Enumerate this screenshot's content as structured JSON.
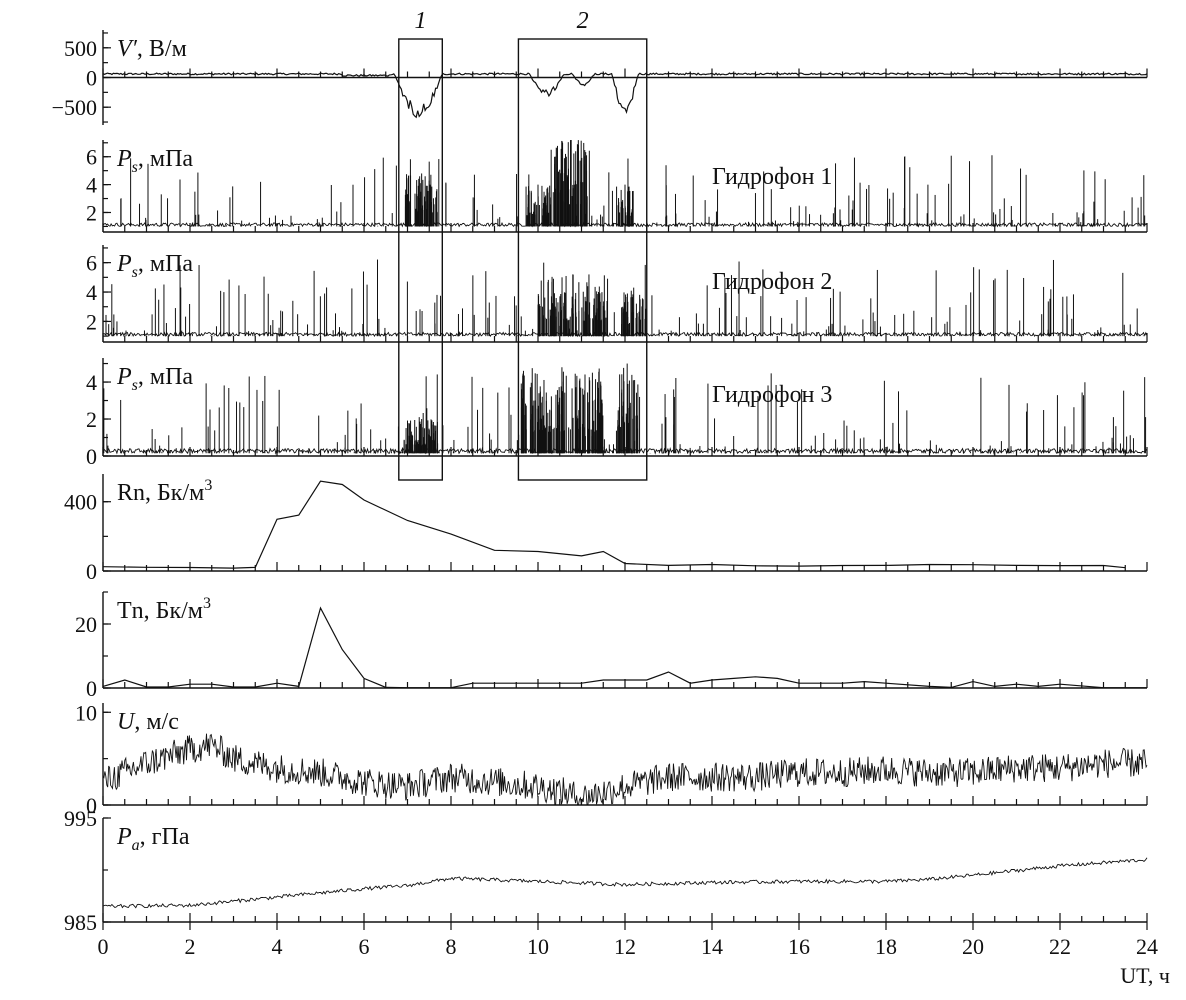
{
  "chart_data": {
    "type": "line",
    "xlim": [
      0,
      24
    ],
    "x_ticks": [
      "0",
      "2",
      "4",
      "6",
      "8",
      "10",
      "12",
      "14",
      "16",
      "18",
      "20",
      "22",
      "24"
    ],
    "xlabel": "UT, ч",
    "boxes": [
      {
        "label": "1",
        "x_range": [
          6.8,
          7.8
        ]
      },
      {
        "label": "2",
        "x_range": [
          9.55,
          12.5
        ]
      }
    ],
    "panels": [
      {
        "id": "efield",
        "label_main": "V′",
        "label_unit": ", В/м",
        "ylim": [
          -800,
          800
        ],
        "y_ticks": [
          "500",
          "0",
          "−500"
        ],
        "y_tick_values": [
          500,
          0,
          -500
        ],
        "baseline": 60,
        "anomalies": [
          {
            "x": [
              6.7,
              7.8
            ],
            "min": -680
          },
          {
            "x": [
              9.8,
              10.6
            ],
            "min": -320
          },
          {
            "x": [
              10.8,
              11.3
            ],
            "min": -150
          },
          {
            "x": [
              11.7,
              12.3
            ],
            "min": -630
          }
        ]
      },
      {
        "id": "hyd1",
        "label_main": "P",
        "label_sub": "s",
        "label_unit": ", мПа",
        "series_name": "Гидрофон 1",
        "ylim": [
          0.6,
          7.2
        ],
        "y_ticks": [
          "6",
          "4",
          "2"
        ],
        "y_tick_values": [
          6,
          4,
          2
        ],
        "baseline": 1.0,
        "bursts": [
          {
            "x": [
              6.95,
              7.7
            ],
            "peak": 4.8
          },
          {
            "x": [
              9.7,
              10.3
            ],
            "peak": 4.0
          },
          {
            "x": [
              10.3,
              11.2
            ],
            "peak": 7.3
          },
          {
            "x": [
              11.8,
              12.2
            ],
            "peak": 4.0
          }
        ]
      },
      {
        "id": "hyd2",
        "label_main": "P",
        "label_sub": "s",
        "label_unit": ", мПа",
        "series_name": "Гидрофон 2",
        "ylim": [
          0.6,
          7.2
        ],
        "y_ticks": [
          "6",
          "4",
          "2"
        ],
        "y_tick_values": [
          6,
          4,
          2
        ],
        "baseline": 1.0,
        "bursts": [
          {
            "x": [
              10.0,
              11.6
            ],
            "peak": 5.2
          },
          {
            "x": [
              11.9,
              12.5
            ],
            "peak": 4.3
          }
        ]
      },
      {
        "id": "hyd3",
        "label_main": "P",
        "label_sub": "s",
        "label_unit": ", мПа",
        "series_name": "Гидрофон 3",
        "ylim": [
          0,
          5.3
        ],
        "y_ticks": [
          "4",
          "2",
          "0"
        ],
        "y_tick_values": [
          4,
          2,
          0
        ],
        "baseline": 0.15,
        "bursts": [
          {
            "x": [
              6.95,
              7.7
            ],
            "peak": 2.0
          },
          {
            "x": [
              9.6,
              11.5
            ],
            "peak": 4.8
          },
          {
            "x": [
              11.8,
              12.3
            ],
            "peak": 5.0
          }
        ]
      },
      {
        "id": "radon",
        "label_main": "Rn, Бк/м",
        "label_sup": "3",
        "ylim": [
          0,
          560
        ],
        "y_ticks": [
          "400",
          "0"
        ],
        "y_tick_values": [
          400,
          0
        ],
        "x": [
          0,
          1,
          2,
          3,
          3.5,
          4,
          4.5,
          5,
          5.5,
          6,
          7,
          8,
          9,
          10,
          11,
          11.5,
          12,
          13,
          14,
          15,
          16,
          17,
          18,
          19,
          19.5,
          20,
          21,
          22,
          23,
          23.5
        ],
        "y": [
          25,
          22,
          22,
          18,
          18,
          300,
          320,
          520,
          500,
          410,
          290,
          210,
          120,
          110,
          90,
          110,
          45,
          35,
          35,
          30,
          30,
          30,
          35,
          35,
          40,
          35,
          35,
          30,
          30,
          20
        ]
      },
      {
        "id": "thoron",
        "label_main": "Tn, Бк/м",
        "label_sup": "3",
        "ylim": [
          0,
          30
        ],
        "y_ticks": [
          "20",
          "0"
        ],
        "y_tick_values": [
          20,
          0
        ],
        "x": [
          0,
          0.5,
          1,
          1.5,
          2,
          2.5,
          3,
          3.5,
          4,
          4.5,
          5,
          5.5,
          6,
          6.5,
          7,
          8,
          8.5,
          9,
          10,
          11,
          11.5,
          12,
          12.5,
          13,
          13.5,
          14,
          14.5,
          15,
          15.5,
          16,
          17,
          17.5,
          18,
          19,
          19.5,
          20,
          20.5,
          21,
          21.5,
          22,
          23,
          24
        ],
        "y": [
          0.5,
          2.5,
          0.3,
          0.3,
          1.2,
          1.2,
          0.3,
          0.3,
          1.5,
          0.5,
          25,
          12,
          3,
          0.2,
          0.1,
          0.1,
          1.5,
          1.5,
          1.5,
          1.5,
          2.5,
          2.5,
          2.5,
          5,
          1.5,
          2.5,
          3,
          3.5,
          3,
          1.5,
          1.5,
          2,
          1.5,
          0.5,
          0.2,
          2,
          0.5,
          1.2,
          0.5,
          1.2,
          0.1,
          0.1
        ]
      },
      {
        "id": "wind",
        "label_main": "U",
        "label_unit": ", м/с",
        "ylim": [
          0,
          11
        ],
        "y_ticks": [
          "10",
          "0"
        ],
        "y_tick_values": [
          10,
          0
        ],
        "trend_x": [
          0,
          1,
          2,
          2.5,
          3,
          4,
          5,
          6,
          7,
          8,
          9,
          10,
          10.5,
          11,
          12,
          13,
          14,
          15,
          16,
          17,
          18,
          19,
          20,
          21,
          22,
          23,
          24
        ],
        "trend_y": [
          2.5,
          4.5,
          6,
          6.5,
          5,
          4,
          3.5,
          2.5,
          2.0,
          3,
          2.5,
          2,
          1.5,
          0.8,
          2,
          3,
          3,
          3,
          3.5,
          3.5,
          3.8,
          3.5,
          3.5,
          4,
          4,
          4.5,
          4.5
        ]
      },
      {
        "id": "pressure",
        "label_main": "P",
        "label_sub": "a",
        "label_unit": ", гПа",
        "ylim": [
          985,
          995
        ],
        "y_ticks": [
          "995",
          "985"
        ],
        "y_tick_values": [
          995,
          985
        ],
        "trend_x": [
          0,
          2,
          4,
          6,
          7,
          8,
          10,
          12,
          14,
          16,
          18,
          19,
          20,
          22,
          24
        ],
        "trend_y": [
          986.5,
          986.6,
          987.4,
          988.2,
          988.5,
          989.2,
          988.9,
          988.6,
          988.8,
          988.9,
          988.9,
          989.1,
          989.5,
          990.4,
          991.0
        ]
      }
    ]
  }
}
